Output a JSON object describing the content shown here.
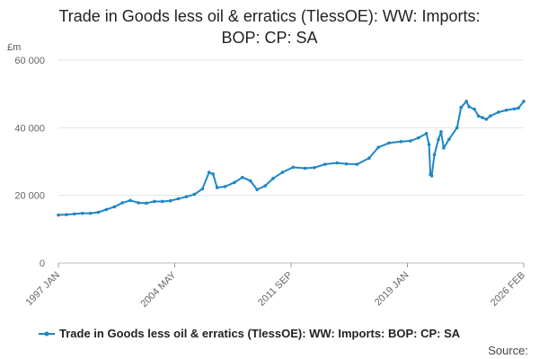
{
  "chart_data": {
    "type": "line",
    "title_line1": "Trade in Goods less oil & erratics (TlessOE): WW: Imports:",
    "title_line2": "BOP: CP: SA",
    "y_unit": "£m",
    "ylim": [
      0,
      60000
    ],
    "y_ticks": [
      0,
      20000,
      40000,
      60000
    ],
    "y_tick_labels": [
      "0",
      "20 000",
      "40 000",
      "60 000"
    ],
    "x_tick_labels": [
      "1997 JAN",
      "2004 MAY",
      "2011 SEP",
      "2019 JAN",
      "2026 FEB"
    ],
    "x_start": "1997-01",
    "x_end": "2026-02",
    "grid": true,
    "legend_position": "bottom",
    "series": [
      {
        "name": "Trade in Goods less oil & erratics (TlessOE): WW: Imports: BOP: CP: SA",
        "color": "#1f86c7",
        "points": [
          [
            "1997-01",
            14200
          ],
          [
            "1997-07",
            14300
          ],
          [
            "1998-01",
            14500
          ],
          [
            "1998-07",
            14700
          ],
          [
            "1999-01",
            14700
          ],
          [
            "1999-07",
            15000
          ],
          [
            "2000-01",
            15800
          ],
          [
            "2000-07",
            16600
          ],
          [
            "2001-01",
            17800
          ],
          [
            "2001-07",
            18500
          ],
          [
            "2002-01",
            17800
          ],
          [
            "2002-07",
            17700
          ],
          [
            "2003-01",
            18200
          ],
          [
            "2003-07",
            18200
          ],
          [
            "2004-01",
            18400
          ],
          [
            "2004-07",
            19000
          ],
          [
            "2005-01",
            19600
          ],
          [
            "2005-07",
            20300
          ],
          [
            "2006-01",
            21900
          ],
          [
            "2006-06",
            26800
          ],
          [
            "2006-09",
            26300
          ],
          [
            "2006-12",
            22300
          ],
          [
            "2007-06",
            22600
          ],
          [
            "2008-01",
            23800
          ],
          [
            "2008-07",
            25300
          ],
          [
            "2009-01",
            24300
          ],
          [
            "2009-06",
            21700
          ],
          [
            "2009-12",
            22800
          ],
          [
            "2010-06",
            25000
          ],
          [
            "2011-01",
            26800
          ],
          [
            "2011-09",
            28300
          ],
          [
            "2012-06",
            28000
          ],
          [
            "2013-01",
            28200
          ],
          [
            "2013-09",
            29200
          ],
          [
            "2014-06",
            29600
          ],
          [
            "2015-01",
            29300
          ],
          [
            "2015-09",
            29200
          ],
          [
            "2016-06",
            31000
          ],
          [
            "2017-01",
            34200
          ],
          [
            "2017-09",
            35500
          ],
          [
            "2018-06",
            35900
          ],
          [
            "2019-01",
            36100
          ],
          [
            "2019-07",
            37000
          ],
          [
            "2020-01",
            38300
          ],
          [
            "2020-03",
            35000
          ],
          [
            "2020-04",
            26200
          ],
          [
            "2020-05",
            25800
          ],
          [
            "2020-07",
            32000
          ],
          [
            "2020-10",
            36500
          ],
          [
            "2020-12",
            38800
          ],
          [
            "2021-02",
            34000
          ],
          [
            "2021-06",
            36600
          ],
          [
            "2021-12",
            40000
          ],
          [
            "2022-03",
            46000
          ],
          [
            "2022-07",
            47800
          ],
          [
            "2022-09",
            46200
          ],
          [
            "2023-01",
            45500
          ],
          [
            "2023-04",
            43500
          ],
          [
            "2023-07",
            43000
          ],
          [
            "2023-10",
            42500
          ],
          [
            "2024-01",
            43500
          ],
          [
            "2024-07",
            44600
          ],
          [
            "2025-01",
            45200
          ],
          [
            "2025-07",
            45600
          ],
          [
            "2025-10",
            45800
          ],
          [
            "2026-02",
            47800
          ]
        ]
      }
    ]
  },
  "legend": {
    "label": "Trade in Goods less oil & erratics (TlessOE): WW: Imports: BOP: CP: SA"
  },
  "source_label": "Source:"
}
